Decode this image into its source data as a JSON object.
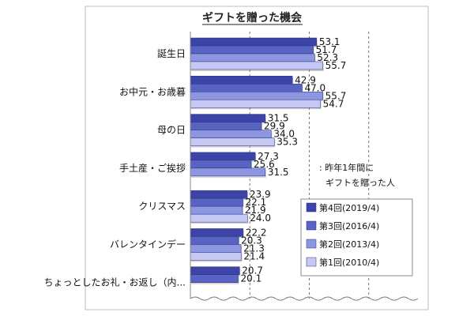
{
  "chart_data": {
    "type": "bar",
    "orientation": "horizontal",
    "title": "ギフトを贈った機会",
    "xlim": [
      0,
      100
    ],
    "grid": true,
    "legend_position": "bottom-right",
    "annotation": [
      ": 昨年1年間に",
      "ギフトを贈った人"
    ],
    "categories": [
      "誕生日",
      "お中元・お歳暮",
      "母の日",
      "手土産・ご挨拶",
      "クリスマス",
      "バレンタインデー",
      "ちょっとしたお礼・お返し（内..."
    ],
    "series": [
      {
        "name": "第4回(2019/4)",
        "color": "#3d44a8",
        "values": [
          53.1,
          42.9,
          31.5,
          27.3,
          23.9,
          22.2,
          20.7
        ]
      },
      {
        "name": "第3回(2016/4)",
        "color": "#5963c2",
        "values": [
          51.7,
          47.0,
          29.9,
          25.6,
          22.1,
          20.3,
          20.1
        ]
      },
      {
        "name": "第2回(2013/4)",
        "color": "#8d97e0",
        "values": [
          52.3,
          55.7,
          34.0,
          31.5,
          21.9,
          21.3,
          null
        ]
      },
      {
        "name": "第1回(2010/4)",
        "color": "#c4c8f2",
        "values": [
          55.7,
          54.7,
          35.3,
          null,
          24.0,
          21.4,
          null
        ]
      }
    ]
  }
}
